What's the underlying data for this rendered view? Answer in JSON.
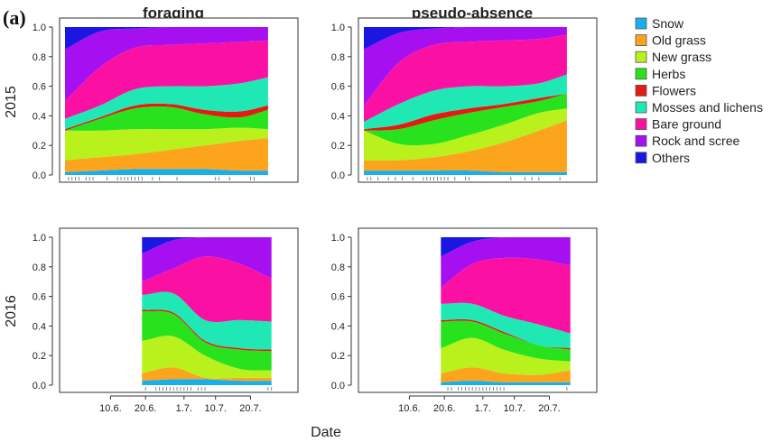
{
  "panel_tag": "(a)",
  "chart_data": {
    "type": "area",
    "stacked": true,
    "normalized": true,
    "ylim": [
      0,
      1
    ],
    "yticks": [
      "0.0",
      "0.2",
      "0.4",
      "0.6",
      "0.8",
      "1.0"
    ],
    "xlabel": "Date",
    "x_axis_ticks": [
      {
        "label": "10.6.",
        "day": 10
      },
      {
        "label": "20.6.",
        "day": 20
      },
      {
        "label": "1.7.",
        "day": 31
      },
      {
        "label": "10.7.",
        "day": 40
      },
      {
        "label": "20.7.",
        "day": 50
      }
    ],
    "column_titles": [
      "foraging",
      "pseudo-absence"
    ],
    "row_labels": [
      "2015",
      "2016"
    ],
    "legend": {
      "position": "right",
      "entries": [
        {
          "name": "Snow",
          "color": "#1aaeea"
        },
        {
          "name": "Old grass",
          "color": "#fba41c"
        },
        {
          "name": "New grass",
          "color": "#b8f11c"
        },
        {
          "name": "Herbs",
          "color": "#27e21d"
        },
        {
          "name": "Flowers",
          "color": "#e51a10"
        },
        {
          "name": "Mosses and lichens",
          "color": "#1fe8b5"
        },
        {
          "name": "Bare ground",
          "color": "#fb10a4"
        },
        {
          "name": "Rock and scree",
          "color": "#a60ff0"
        },
        {
          "name": "Others",
          "color": "#1b17e2"
        }
      ]
    },
    "panels": [
      {
        "row": "2015",
        "column": "foraging",
        "days": [
          -3,
          7,
          17,
          27,
          37,
          47,
          55
        ],
        "boundaries": [
          [
            0.02,
            0.03,
            0.04,
            0.04,
            0.04,
            0.03,
            0.03
          ],
          [
            0.1,
            0.12,
            0.14,
            0.17,
            0.2,
            0.23,
            0.25
          ],
          [
            0.3,
            0.3,
            0.31,
            0.31,
            0.31,
            0.32,
            0.31
          ],
          [
            0.3,
            0.38,
            0.45,
            0.46,
            0.41,
            0.39,
            0.44
          ],
          [
            0.31,
            0.39,
            0.47,
            0.48,
            0.44,
            0.43,
            0.47
          ],
          [
            0.38,
            0.47,
            0.58,
            0.6,
            0.6,
            0.62,
            0.66
          ],
          [
            0.5,
            0.73,
            0.86,
            0.88,
            0.89,
            0.9,
            0.91
          ],
          [
            0.85,
            0.97,
            0.99,
            1.0,
            1.0,
            1.0,
            1.0
          ],
          [
            1.0,
            1.0,
            1.0,
            1.0,
            1.0,
            1.0,
            1.0
          ]
        ],
        "sample_days": [
          -2,
          -1,
          0,
          1,
          3,
          4,
          5,
          9,
          12,
          13,
          14,
          15,
          16,
          17,
          18,
          19,
          22,
          24,
          29,
          40,
          41,
          44,
          50,
          51
        ]
      },
      {
        "row": "2015",
        "column": "pseudo-absence",
        "days": [
          -3,
          7,
          17,
          27,
          37,
          47,
          55
        ],
        "boundaries": [
          [
            0.03,
            0.03,
            0.03,
            0.03,
            0.02,
            0.02,
            0.02
          ],
          [
            0.1,
            0.1,
            0.12,
            0.16,
            0.22,
            0.3,
            0.37
          ],
          [
            0.3,
            0.21,
            0.21,
            0.27,
            0.34,
            0.42,
            0.45
          ],
          [
            0.3,
            0.31,
            0.37,
            0.42,
            0.46,
            0.5,
            0.55
          ],
          [
            0.31,
            0.34,
            0.41,
            0.45,
            0.48,
            0.52,
            0.55
          ],
          [
            0.36,
            0.48,
            0.57,
            0.6,
            0.6,
            0.62,
            0.68
          ],
          [
            0.47,
            0.76,
            0.88,
            0.9,
            0.91,
            0.92,
            0.95
          ],
          [
            0.85,
            0.96,
            0.99,
            1.0,
            1.0,
            1.0,
            1.0
          ],
          [
            1.0,
            1.0,
            1.0,
            1.0,
            1.0,
            1.0,
            1.0
          ]
        ],
        "sample_days": [
          -2,
          -1,
          1,
          4,
          6,
          8,
          11,
          14,
          15,
          16,
          17,
          18,
          19,
          20,
          21,
          23,
          26,
          27,
          39,
          43,
          45,
          47,
          53
        ]
      },
      {
        "row": "2016",
        "column": "foraging",
        "days": [
          19,
          28,
          37,
          47,
          56
        ],
        "boundaries": [
          [
            0.03,
            0.04,
            0.04,
            0.03,
            0.03
          ],
          [
            0.08,
            0.12,
            0.05,
            0.05,
            0.05
          ],
          [
            0.3,
            0.33,
            0.2,
            0.11,
            0.1
          ],
          [
            0.5,
            0.48,
            0.29,
            0.24,
            0.23
          ],
          [
            0.51,
            0.49,
            0.3,
            0.25,
            0.24
          ],
          [
            0.61,
            0.62,
            0.44,
            0.44,
            0.43
          ],
          [
            0.7,
            0.79,
            0.87,
            0.82,
            0.72
          ],
          [
            0.89,
            0.98,
            1.0,
            1.0,
            1.0
          ],
          [
            1.0,
            1.0,
            1.0,
            1.0,
            1.0
          ]
        ],
        "sample_days": [
          20,
          23,
          24,
          25,
          26,
          27,
          28,
          29,
          30,
          31,
          32,
          33,
          35,
          36,
          37,
          55,
          56
        ]
      },
      {
        "row": "2016",
        "column": "pseudo-absence",
        "days": [
          19,
          28,
          37,
          47,
          56
        ],
        "boundaries": [
          [
            0.02,
            0.03,
            0.02,
            0.02,
            0.02
          ],
          [
            0.08,
            0.12,
            0.08,
            0.07,
            0.1
          ],
          [
            0.25,
            0.32,
            0.24,
            0.18,
            0.16
          ],
          [
            0.43,
            0.43,
            0.35,
            0.27,
            0.24
          ],
          [
            0.44,
            0.44,
            0.36,
            0.27,
            0.25
          ],
          [
            0.55,
            0.55,
            0.47,
            0.41,
            0.35
          ],
          [
            0.66,
            0.82,
            0.86,
            0.85,
            0.81
          ],
          [
            0.87,
            0.97,
            1.0,
            1.0,
            1.0
          ],
          [
            1.0,
            1.0,
            1.0,
            1.0,
            1.0
          ]
        ],
        "sample_days": [
          21,
          22,
          24,
          25,
          26,
          27,
          28,
          29,
          30,
          31,
          32,
          33,
          34,
          35,
          36,
          37,
          55
        ]
      }
    ]
  }
}
